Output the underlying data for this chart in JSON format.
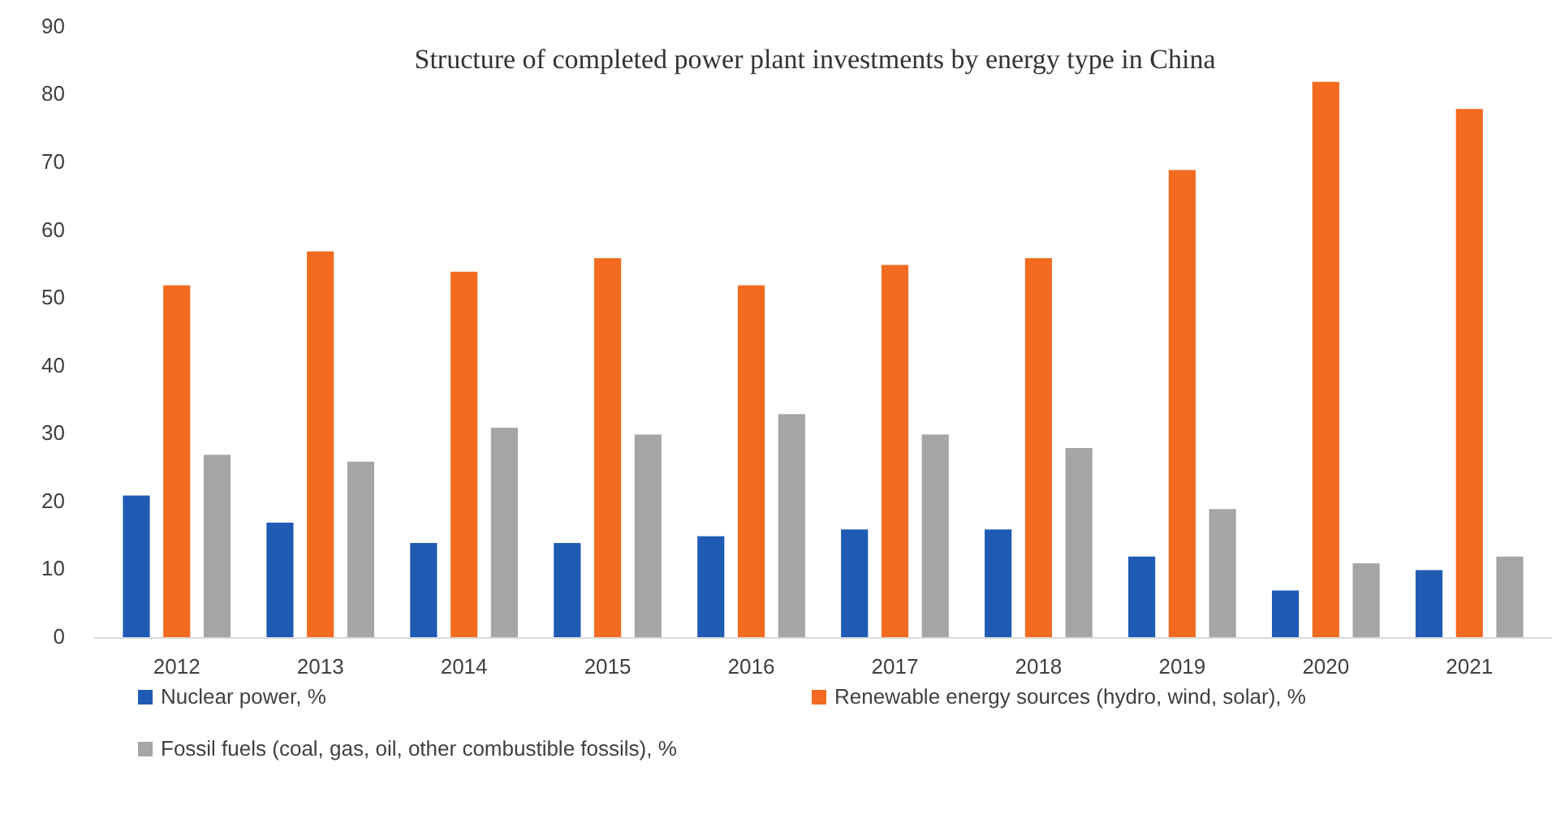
{
  "chart_data": {
    "type": "bar",
    "title": "Structure of completed power plant investments by energy type in China",
    "categories": [
      "2012",
      "2013",
      "2014",
      "2015",
      "2016",
      "2017",
      "2018",
      "2019",
      "2020",
      "2021"
    ],
    "series": [
      {
        "name": "Nuclear power, %",
        "color": "#1f5bb5",
        "values": [
          21,
          17,
          14,
          14,
          15,
          16,
          16,
          12,
          7,
          10
        ]
      },
      {
        "name": "Renewable energy sources (hydro, wind, solar), %",
        "color": "#f26b21",
        "values": [
          52,
          57,
          54,
          56,
          52,
          55,
          56,
          69,
          82,
          78
        ]
      },
      {
        "name": "Fossil fuels (coal, gas, oil, other combustible fossils), %",
        "color": "#a5a5a5",
        "values": [
          27,
          26,
          31,
          30,
          33,
          30,
          28,
          19,
          11,
          12
        ]
      }
    ],
    "ylim": [
      0,
      90
    ],
    "yticks": [
      0,
      10,
      20,
      30,
      40,
      50,
      60,
      70,
      80,
      90
    ],
    "grid": false,
    "legend": "bottom"
  }
}
